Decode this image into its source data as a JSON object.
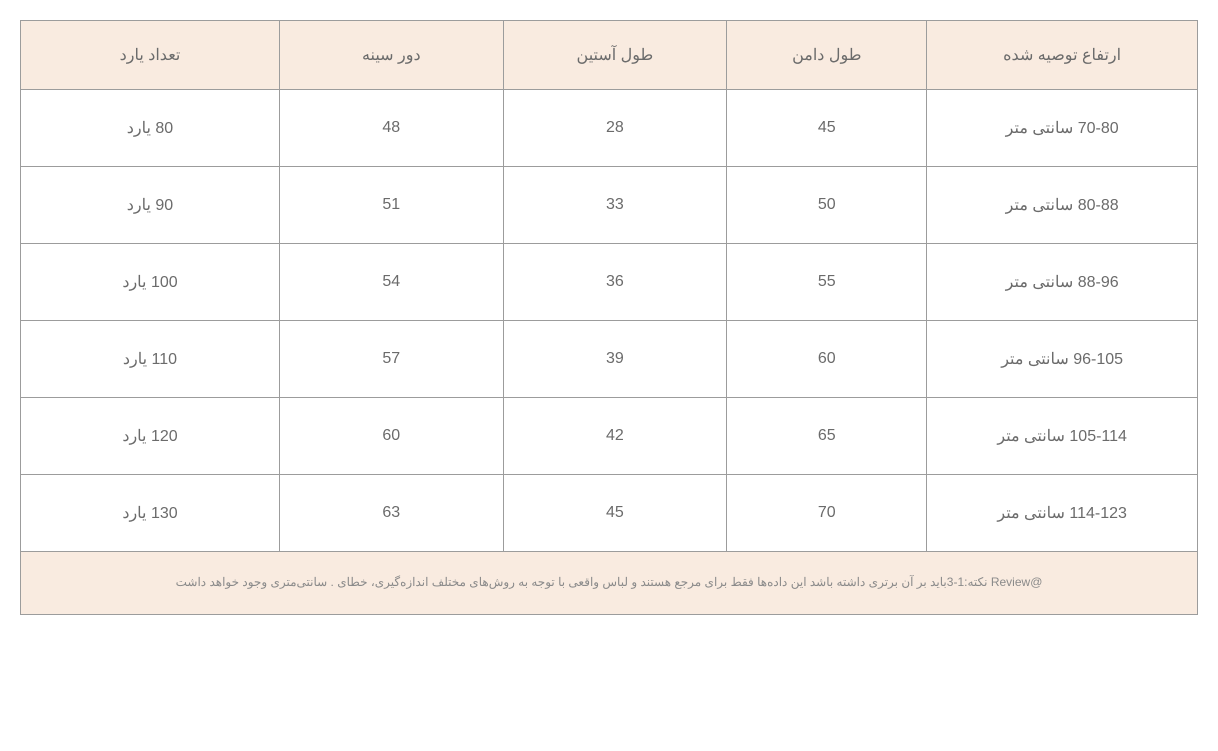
{
  "table": {
    "columns": [
      {
        "key": "height",
        "label": "ارتفاع توصیه شده",
        "class": "col-height"
      },
      {
        "key": "skirt",
        "label": "طول دامن",
        "class": "col-skirt"
      },
      {
        "key": "sleeve",
        "label": "طول آستین",
        "class": "col-sleeve"
      },
      {
        "key": "bust",
        "label": "دور سینه",
        "class": "col-bust"
      },
      {
        "key": "yard",
        "label": "تعداد یارد",
        "class": "col-yard"
      }
    ],
    "rows": [
      {
        "height": "70-80 سانتی متر",
        "skirt": "45",
        "sleeve": "28",
        "bust": "48",
        "yard": "80 یارد"
      },
      {
        "height": "80-88 سانتی متر",
        "skirt": "50",
        "sleeve": "33",
        "bust": "51",
        "yard": "90 یارد"
      },
      {
        "height": "88-96 سانتی متر",
        "skirt": "55",
        "sleeve": "36",
        "bust": "54",
        "yard": "100 یارد"
      },
      {
        "height": "96-105 سانتی متر",
        "skirt": "60",
        "sleeve": "39",
        "bust": "57",
        "yard": "110 یارد"
      },
      {
        "height": "105-114 سانتی متر",
        "skirt": "65",
        "sleeve": "42",
        "bust": "60",
        "yard": "120 یارد"
      },
      {
        "height": "114-123 سانتی متر",
        "skirt": "70",
        "sleeve": "45",
        "bust": "63",
        "yard": "130 یارد"
      }
    ],
    "footer_note": "@Review نکته:1-3باید بر آن برتری داشته باشد این داده‌ها فقط برای مرجع هستند و لباس واقعی با توجه به روش‌های مختلف اندازه‌گیری، خطای . سانتی‌متری وجود خواهد داشت"
  },
  "style": {
    "type": "table",
    "header_background": "#f9ebe0",
    "body_background": "#ffffff",
    "footer_background": "#f9ebe0",
    "border_color": "#9c9c9c",
    "header_text_color": "#6b6b6b",
    "body_text_color": "#6b6b6b",
    "footer_text_color": "#8a8a8a",
    "header_fontsize": 16,
    "body_fontsize": 16,
    "footer_fontsize": 12,
    "cell_padding_v": 28,
    "header_padding_v": 24
  }
}
